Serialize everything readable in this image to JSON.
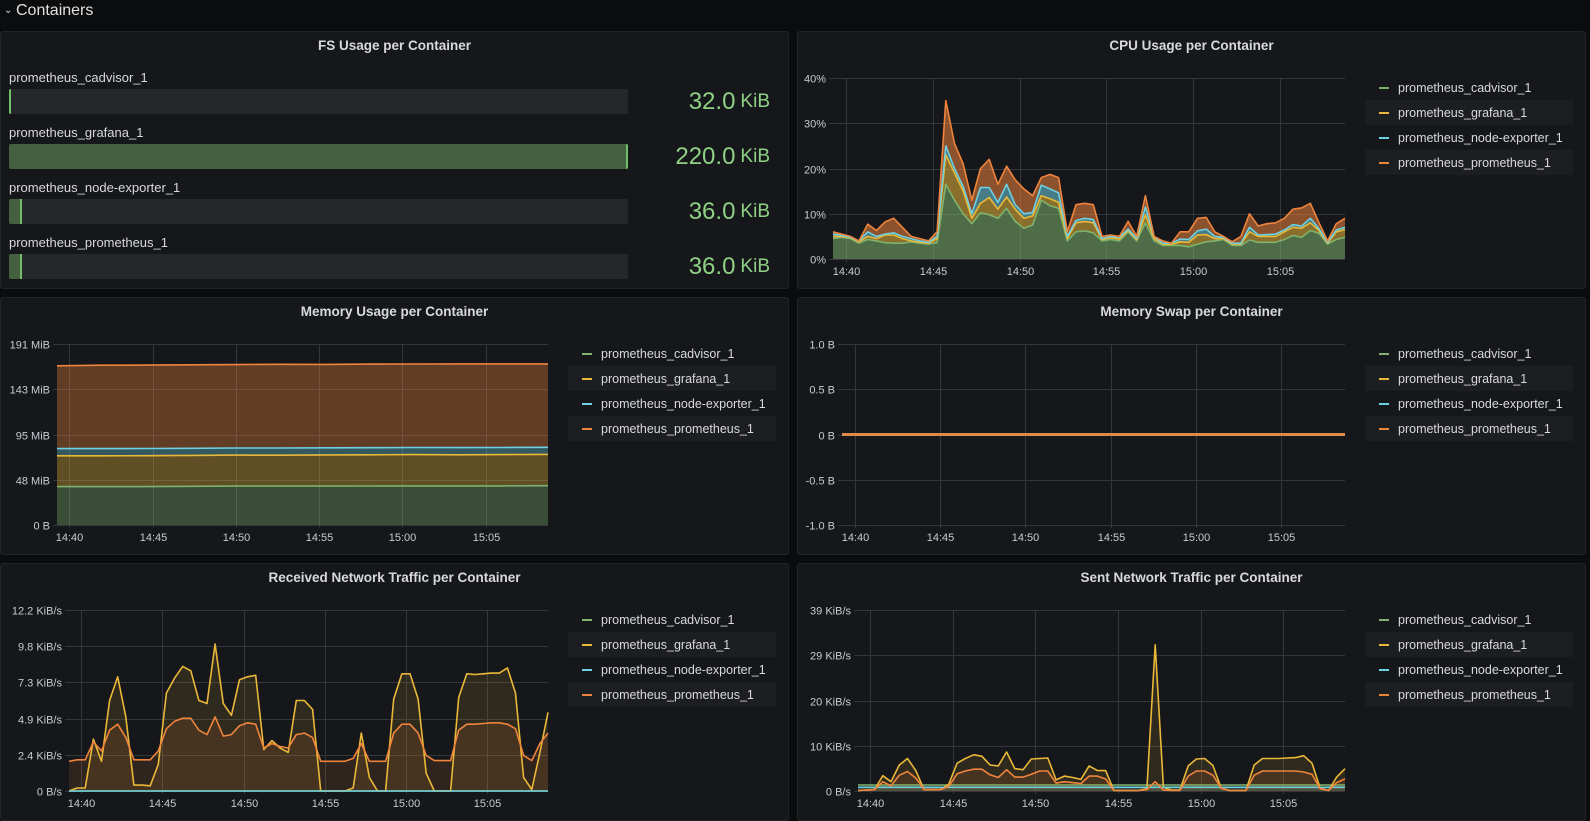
{
  "row": {
    "title": "Containers",
    "icon": "chevron-down-icon"
  },
  "colors": {
    "prometheus_cadvisor_1": "#7EB26D",
    "prometheus_grafana_1": "#EAB839",
    "prometheus_node-exporter_1": "#6ED0E0",
    "prometheus_prometheus_1": "#EF843C",
    "fs_value": "#8fd184"
  },
  "fs_panel": {
    "title": "FS Usage per Container",
    "items": [
      {
        "name": "prometheus_cadvisor_1",
        "value": "32.0",
        "unit": "KiB",
        "fill_fraction": 0.0
      },
      {
        "name": "prometheus_grafana_1",
        "value": "220.0",
        "unit": "KiB",
        "fill_fraction": 1.0
      },
      {
        "name": "prometheus_node-exporter_1",
        "value": "36.0",
        "unit": "KiB",
        "fill_fraction": 0.021
      },
      {
        "name": "prometheus_prometheus_1",
        "value": "36.0",
        "unit": "KiB",
        "fill_fraction": 0.021
      }
    ]
  },
  "chart_data": [
    {
      "id": "cpu",
      "type": "area",
      "stacked": true,
      "title": "CPU Usage per Container",
      "x_start": "14:39:15",
      "x_end": "15:08:45",
      "x_ticks": [
        "14:40",
        "14:45",
        "14:50",
        "14:55",
        "15:00",
        "15:05"
      ],
      "ylim": [
        0,
        40
      ],
      "y_ticks": [
        {
          "value": 0,
          "label": "0%"
        },
        {
          "value": 10,
          "label": "10%"
        },
        {
          "value": 20,
          "label": "20%"
        },
        {
          "value": 30,
          "label": "30%"
        },
        {
          "value": 40,
          "label": "40%"
        }
      ],
      "unit": "%",
      "grid": true,
      "legend": "right",
      "series": [
        {
          "name": "prometheus_cadvisor_1",
          "values": [
            4.5,
            4.8,
            4.5,
            3.5,
            4.3,
            4,
            3.6,
            3.5,
            3.5,
            3.8,
            3.5,
            3.3,
            3.6,
            16.5,
            13,
            10,
            7.8,
            10.2,
            9.8,
            9,
            11.2,
            8.3,
            6.8,
            7.5,
            13,
            11.8,
            11.2,
            4,
            6,
            6.2,
            5.8,
            4,
            4.3,
            4,
            6,
            4,
            8,
            4,
            3,
            3,
            3,
            2.7,
            3.3,
            3.8,
            4,
            4.3,
            3,
            3,
            4.2,
            3.7,
            3.7,
            3.7,
            4.3,
            5.2,
            4.8,
            6.3,
            5.7,
            3.3,
            4.3,
            4.8
          ]
        },
        {
          "name": "prometheus_grafana_1",
          "values": [
            0.5,
            0.2,
            0.2,
            0.3,
            0.7,
            0.5,
            1.7,
            1.8,
            1.0,
            0.2,
            0.2,
            0.2,
            0.9,
            6.5,
            6,
            5,
            1.2,
            2.1,
            3.8,
            2,
            2.5,
            2.7,
            2.2,
            2,
            1,
            1.5,
            1.3,
            0.5,
            2,
            2.1,
            2.2,
            0.3,
            0.4,
            0.4,
            0.3,
            0.3,
            1.8,
            0.5,
            0.3,
            0.2,
            0.8,
            1.0,
            2.0,
            1.6,
            0.5,
            0.2,
            0.3,
            0.3,
            1.8,
            1.3,
            1.3,
            1.3,
            1.7,
            1.8,
            2.0,
            1.7,
            0.6,
            0.2,
            1.7,
            1.7
          ]
        },
        {
          "name": "prometheus_node-exporter_1",
          "values": [
            0.5,
            0.2,
            0.1,
            0.2,
            1.0,
            0.5,
            0.2,
            0.5,
            0.5,
            0.5,
            0.3,
            0.2,
            0.5,
            2,
            1,
            1,
            1,
            3.5,
            2.2,
            1.5,
            2.8,
            1,
            1,
            0.8,
            2.3,
            2.2,
            2.1,
            0.5,
            0.5,
            0.7,
            0.7,
            0.2,
            0.3,
            0.4,
            0.3,
            0.3,
            1.7,
            0.5,
            0.2,
            0.3,
            0.6,
            0.6,
            0.9,
            1.2,
            0.5,
            0.3,
            0.2,
            0.2,
            1.0,
            0.3,
            0.4,
            0.5,
            0.4,
            0.6,
            0.5,
            1.0,
            0.4,
            0.2,
            0.4,
            0.5
          ]
        },
        {
          "name": "prometheus_prometheus_1",
          "values": [
            0.5,
            0.3,
            0.2,
            0,
            1.7,
            1.3,
            2.7,
            3.2,
            2,
            0.5,
            0.5,
            0.3,
            1,
            10,
            5.5,
            5,
            3,
            4.2,
            6.2,
            4,
            4,
            5.5,
            5.5,
            3.7,
            1.7,
            3.2,
            3.4,
            1,
            3.5,
            3.3,
            3.3,
            0.5,
            0.3,
            0.2,
            1.7,
            0.4,
            2.5,
            0,
            0.5,
            0,
            1.6,
            1.7,
            2.8,
            2.6,
            1,
            0.2,
            0.3,
            1.5,
            3,
            2,
            2.4,
            2.5,
            2.6,
            3.4,
            4,
            3.3,
            1.3,
            0.3,
            1.4,
            2
          ]
        }
      ]
    },
    {
      "id": "memory",
      "type": "area",
      "stacked": true,
      "title": "Memory Usage per Container",
      "x_start": "14:39:15",
      "x_end": "15:08:45",
      "x_ticks": [
        "14:40",
        "14:45",
        "14:50",
        "14:55",
        "15:00",
        "15:05"
      ],
      "ylim": [
        0,
        191
      ],
      "y_ticks": [
        {
          "value": 0,
          "label": "0 B"
        },
        {
          "value": 47.75,
          "label": "48 MiB"
        },
        {
          "value": 95.5,
          "label": "95 MiB"
        },
        {
          "value": 143.25,
          "label": "143 MiB"
        },
        {
          "value": 191,
          "label": "191 MiB"
        }
      ],
      "unit": "MiB",
      "grid": true,
      "legend": "right",
      "series": [
        {
          "name": "prometheus_cadvisor_1",
          "values": [
            40.5,
            40.5,
            40.5,
            40.8,
            41,
            41,
            41,
            41.2,
            41.3,
            41.3,
            41.3,
            41.5
          ]
        },
        {
          "name": "prometheus_grafana_1",
          "values": [
            32.5,
            32.5,
            32.6,
            32.6,
            32.8,
            32.7,
            33,
            32.9,
            33,
            32.8,
            33,
            33
          ]
        },
        {
          "name": "prometheus_node-exporter_1",
          "values": [
            7.6,
            7.6,
            7.6,
            7.5,
            7.5,
            7.6,
            7.5,
            7.5,
            7.5,
            7.6,
            7.5,
            7.5
          ]
        },
        {
          "name": "prometheus_prometheus_1",
          "values": [
            87.4,
            88,
            88,
            88.2,
            88,
            88.3,
            88,
            88.2,
            88.1,
            88.3,
            88.2,
            88
          ]
        }
      ]
    },
    {
      "id": "swap",
      "type": "line",
      "stacked": false,
      "title": "Memory Swap per Container",
      "x_start": "14:39:15",
      "x_end": "15:08:45",
      "x_ticks": [
        "14:40",
        "14:45",
        "14:50",
        "14:55",
        "15:00",
        "15:05"
      ],
      "ylim": [
        -1,
        1
      ],
      "y_ticks": [
        {
          "value": -1,
          "label": "-1.0 B"
        },
        {
          "value": -0.5,
          "label": "-0.5 B"
        },
        {
          "value": 0,
          "label": "0 B"
        },
        {
          "value": 0.5,
          "label": "0.5 B"
        },
        {
          "value": 1,
          "label": "1.0 B"
        }
      ],
      "unit": "B",
      "grid": true,
      "legend": "right",
      "series": [
        {
          "name": "prometheus_cadvisor_1",
          "values": [
            0,
            0
          ]
        },
        {
          "name": "prometheus_grafana_1",
          "values": [
            0,
            0
          ]
        },
        {
          "name": "prometheus_node-exporter_1",
          "values": [
            0,
            0
          ]
        },
        {
          "name": "prometheus_prometheus_1",
          "values": [
            0,
            0
          ]
        }
      ]
    },
    {
      "id": "received",
      "type": "area",
      "stacked": false,
      "title": "Received Network Traffic per Container",
      "x_start": "14:39:15",
      "x_end": "15:08:45",
      "x_ticks": [
        "14:40",
        "14:45",
        "14:50",
        "14:55",
        "15:00",
        "15:05"
      ],
      "ylim": [
        0,
        12.2
      ],
      "y_ticks": [
        {
          "value": 0,
          "label": "0 B/s"
        },
        {
          "value": 2.44,
          "label": "2.4 KiB/s"
        },
        {
          "value": 4.88,
          "label": "4.9 KiB/s"
        },
        {
          "value": 7.32,
          "label": "7.3 KiB/s"
        },
        {
          "value": 9.76,
          "label": "9.8 KiB/s"
        },
        {
          "value": 12.2,
          "label": "12.2 KiB/s"
        }
      ],
      "unit": "KiB/s",
      "grid": true,
      "legend": "right",
      "series": [
        {
          "name": "prometheus_cadvisor_1",
          "values": [
            0,
            0
          ]
        },
        {
          "name": "prometheus_grafana_1",
          "values": [
            0,
            0.2,
            0.2,
            3.5,
            2.0,
            6.1,
            7.7,
            5.0,
            0.4,
            0.4,
            0.35,
            1.8,
            6.6,
            7.6,
            8.4,
            8.1,
            6.1,
            5.9,
            9.9,
            5.9,
            5.1,
            7.5,
            7.7,
            7.8,
            2.8,
            3.4,
            2.9,
            2.6,
            6.1,
            6.1,
            5.5,
            0,
            0,
            0,
            0,
            0.2,
            3.9,
            0.9,
            0,
            0,
            6.2,
            7.9,
            7.9,
            6.2,
            1.2,
            0,
            0,
            0,
            6.3,
            7.9,
            7.85,
            7.9,
            7.95,
            7.95,
            8.3,
            6.6,
            0.9,
            0.1,
            2.6,
            5.3
          ]
        },
        {
          "name": "prometheus_node-exporter_1",
          "values": [
            0,
            0
          ]
        },
        {
          "name": "prometheus_prometheus_1",
          "values": [
            2.0,
            2.1,
            2.1,
            3.3,
            2.7,
            4.1,
            4.5,
            3.6,
            2.1,
            2.1,
            2.1,
            2.7,
            4.2,
            4.7,
            4.9,
            4.9,
            4.1,
            3.8,
            5.0,
            3.7,
            3.8,
            4.4,
            4.6,
            4.5,
            2.9,
            3.2,
            3.0,
            2.9,
            3.8,
            3.9,
            3.6,
            2.0,
            2.0,
            2.0,
            2.0,
            2.2,
            3.2,
            2.0,
            2.0,
            2.0,
            3.9,
            4.5,
            4.5,
            3.9,
            2.4,
            2.05,
            2.05,
            2.05,
            4.1,
            4.5,
            4.5,
            4.55,
            4.6,
            4.6,
            4.5,
            4.2,
            2.4,
            2.05,
            3.2,
            3.9
          ]
        }
      ]
    },
    {
      "id": "sent",
      "type": "area",
      "stacked": false,
      "title": "Sent Network Traffic per Container",
      "x_start": "14:39:15",
      "x_end": "15:08:45",
      "x_ticks": [
        "14:40",
        "14:45",
        "14:50",
        "14:55",
        "15:00",
        "15:05"
      ],
      "ylim": [
        0,
        39
      ],
      "y_ticks": [
        {
          "value": 0,
          "label": "0 B/s"
        },
        {
          "value": 9.75,
          "label": "10 KiB/s"
        },
        {
          "value": 19.5,
          "label": "20 KiB/s"
        },
        {
          "value": 29.25,
          "label": "29 KiB/s"
        },
        {
          "value": 39,
          "label": "39 KiB/s"
        }
      ],
      "unit": "KiB/s",
      "grid": true,
      "legend": "right",
      "series": [
        {
          "name": "prometheus_cadvisor_1",
          "values": [
            1.3,
            1.3
          ]
        },
        {
          "name": "prometheus_grafana_1",
          "values": [
            0.1,
            0.2,
            0.3,
            3.3,
            2.0,
            5.6,
            7.0,
            4.4,
            0.3,
            0.3,
            0.3,
            1.5,
            6.0,
            7.0,
            7.8,
            7.5,
            5.6,
            5.4,
            8.4,
            4.8,
            4.6,
            6.9,
            7.0,
            7.1,
            2.4,
            3.2,
            2.9,
            2.5,
            5.4,
            4.4,
            4.4,
            0.1,
            0.1,
            0.1,
            0.1,
            0.5,
            31.5,
            0.8,
            0.2,
            0.2,
            5.4,
            6.9,
            7.0,
            5.5,
            0.6,
            0.1,
            0.1,
            0.1,
            5.6,
            7.0,
            7.0,
            7.0,
            7.1,
            7.2,
            7.6,
            6.0,
            0.6,
            0.1,
            3.0,
            4.8
          ]
        },
        {
          "name": "prometheus_node-exporter_1",
          "values": [
            0.8,
            0.8
          ]
        },
        {
          "name": "prometheus_prometheus_1",
          "values": [
            0.1,
            0.2,
            0.3,
            2.0,
            1.1,
            3.4,
            4.2,
            2.8,
            0.3,
            0.3,
            0.3,
            1.0,
            3.7,
            4.3,
            4.7,
            4.7,
            3.5,
            2.9,
            4.6,
            3.0,
            3.0,
            3.6,
            4.3,
            4.3,
            1.7,
            2.0,
            1.8,
            1.6,
            3.2,
            3.2,
            2.6,
            0.1,
            0.1,
            0.1,
            0.1,
            0.3,
            2.0,
            0.2,
            0.1,
            0.1,
            3.2,
            4.3,
            4.3,
            3.4,
            0.6,
            0.1,
            0.1,
            0.1,
            3.4,
            4.3,
            4.3,
            4.3,
            4.3,
            4.3,
            4.1,
            3.6,
            0.5,
            0.1,
            1.8,
            2.6
          ]
        }
      ]
    }
  ]
}
